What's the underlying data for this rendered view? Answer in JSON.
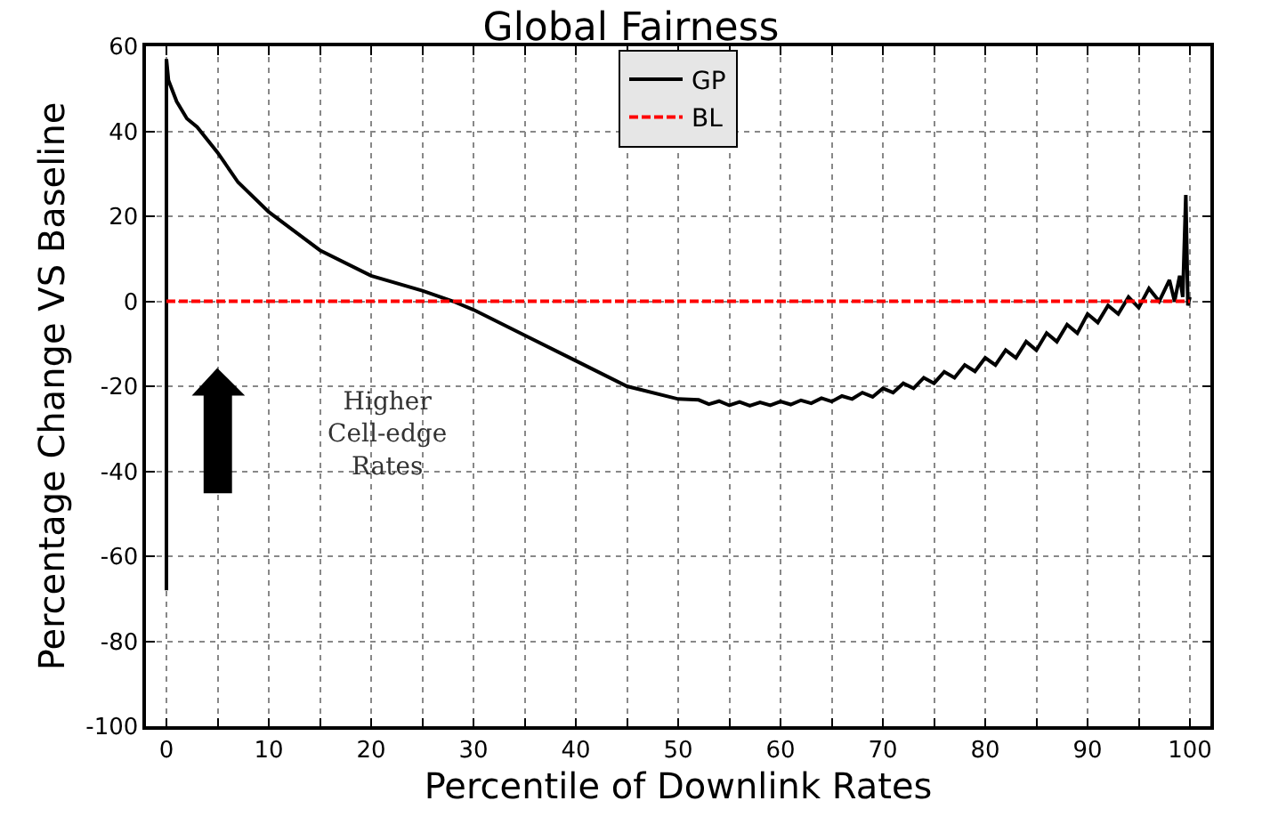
{
  "chart_data": {
    "type": "line",
    "title": "Global Fairness",
    "xlabel": "Percentile of Downlink Rates",
    "ylabel": "Percentage Change VS Baseline",
    "xlim": [
      -2,
      102
    ],
    "ylim": [
      -100,
      60
    ],
    "xticks": [
      0,
      {
        "value": 5,
        "label": null
      },
      10,
      {
        "value": 15,
        "label": null
      },
      20,
      {
        "value": 25,
        "label": null
      },
      30,
      {
        "value": 35,
        "label": null
      },
      40,
      {
        "value": 45,
        "label": null
      },
      50,
      {
        "value": 55,
        "label": null
      },
      60,
      {
        "value": 65,
        "label": null
      },
      70,
      {
        "value": 75,
        "label": null
      },
      80,
      {
        "value": 85,
        "label": null
      },
      90,
      {
        "value": 95,
        "label": null
      },
      100
    ],
    "yticks": [
      -100,
      -80,
      -60,
      -40,
      -20,
      0,
      20,
      40,
      60
    ],
    "grid": true,
    "legend": "top",
    "marker": "none",
    "annotations": [
      "Higher\nCell-edge\nRates"
    ],
    "series": [
      {
        "name": "GP",
        "color": "#000000",
        "line_style": "solid",
        "x": [
          0,
          0,
          0.2,
          1,
          2,
          3,
          5,
          7,
          10,
          15,
          20,
          25,
          28,
          30,
          35,
          40,
          45,
          50,
          52,
          53,
          54,
          55,
          56,
          57,
          58,
          59,
          60,
          61,
          62,
          63,
          64,
          65,
          66,
          67,
          68,
          69,
          70,
          71,
          72,
          73,
          74,
          75,
          76,
          77,
          78,
          79,
          80,
          81,
          82,
          83,
          84,
          85,
          86,
          87,
          88,
          89,
          90,
          91,
          92,
          93,
          94,
          95,
          96,
          97,
          98,
          98.5,
          99,
          99.3,
          99.6,
          99.8,
          100
        ],
        "values": [
          -68,
          57,
          52,
          47,
          43,
          41,
          35,
          28,
          21,
          12,
          6,
          2.5,
          0,
          -2,
          -8,
          -14,
          -20,
          -23,
          -23.2,
          -24.2,
          -23.5,
          -24.5,
          -23.7,
          -24.6,
          -23.8,
          -24.5,
          -23.6,
          -24.3,
          -23.3,
          -24,
          -22.8,
          -23.6,
          -22.3,
          -23,
          -21.5,
          -22.5,
          -20.5,
          -21.5,
          -19.3,
          -20.5,
          -18,
          -19.3,
          -16.6,
          -18,
          -15,
          -16.5,
          -13.3,
          -15,
          -11.5,
          -13.3,
          -9.5,
          -11.5,
          -7.5,
          -9.5,
          -5.5,
          -7.5,
          -3,
          -5,
          -1,
          -3,
          1,
          -1.5,
          3,
          0,
          5,
          0,
          6,
          1,
          25,
          -1,
          1
        ]
      },
      {
        "name": "BL",
        "color": "#ff0000",
        "line_style": "dashed",
        "x": [
          0,
          100
        ],
        "values": [
          0,
          0
        ]
      }
    ]
  }
}
